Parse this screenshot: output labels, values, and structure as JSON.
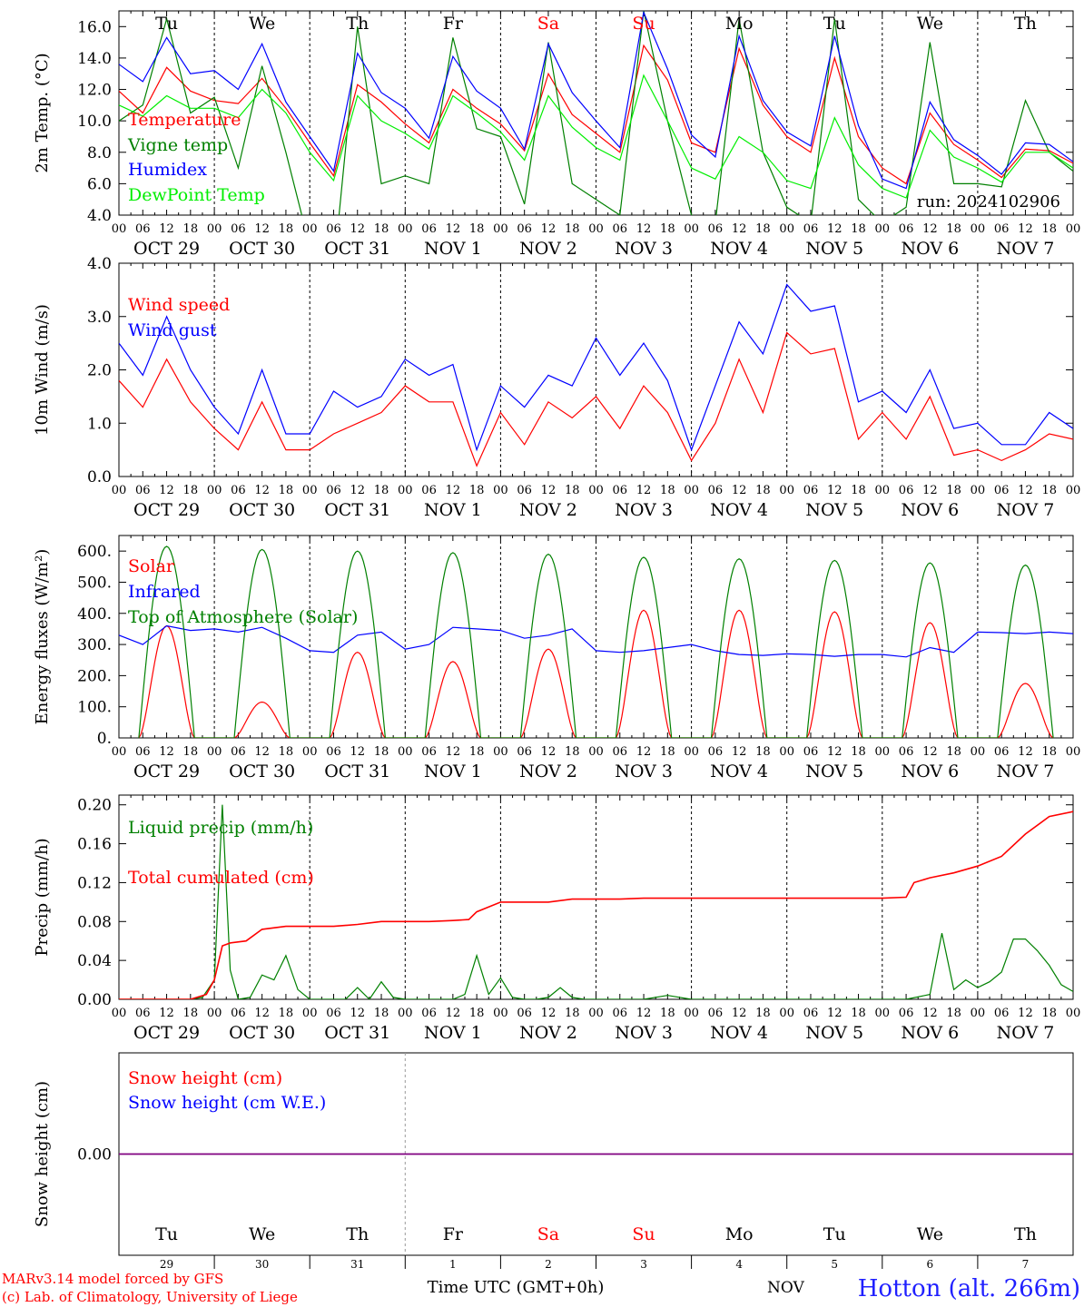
{
  "run_label": "run: 2024102906",
  "footer": {
    "model": "MARv3.14 model forced by GFS",
    "credit": "(c) Lab. of Climatology, University of Liege",
    "time_label": "Time UTC (GMT+0h)",
    "month": "NOV",
    "station": "Hotton (alt. 266m)"
  },
  "days": [
    {
      "abbr": "Tu",
      "date": "OCT 29",
      "num": "29",
      "weekend": false
    },
    {
      "abbr": "We",
      "date": "OCT 30",
      "num": "30",
      "weekend": false
    },
    {
      "abbr": "Th",
      "date": "OCT 31",
      "num": "31",
      "weekend": false
    },
    {
      "abbr": "Fr",
      "date": "NOV  1",
      "num": "1",
      "weekend": false
    },
    {
      "abbr": "Sa",
      "date": "NOV  2",
      "num": "2",
      "weekend": true
    },
    {
      "abbr": "Su",
      "date": "NOV  3",
      "num": "3",
      "weekend": true
    },
    {
      "abbr": "Mo",
      "date": "NOV  4",
      "num": "4",
      "weekend": false
    },
    {
      "abbr": "Tu",
      "date": "NOV  5",
      "num": "5",
      "weekend": false
    },
    {
      "abbr": "We",
      "date": "NOV  6",
      "num": "6",
      "weekend": false
    },
    {
      "abbr": "Th",
      "date": "NOV  7",
      "num": "7",
      "weekend": false
    }
  ],
  "hour_ticks": [
    "00",
    "06",
    "12",
    "18"
  ],
  "colors": {
    "red": "#ff0000",
    "green": "#008000",
    "blue": "#0000ff",
    "lightgreen": "#00ee00",
    "purple": "#800080",
    "grid": "#000000"
  },
  "chart_data": [
    {
      "type": "line",
      "ylabel": "2m Temp. (°C)",
      "ylim": [
        4,
        17
      ],
      "yticks": [
        "4.0",
        "6.0",
        "8.0",
        "10.0",
        "12.0",
        "14.0",
        "16.0"
      ],
      "x_hours": [
        0,
        6,
        12,
        18,
        24,
        30,
        36,
        42,
        48,
        54,
        60,
        66,
        72,
        78,
        84,
        90,
        96,
        102,
        108,
        114,
        120,
        126,
        132,
        138,
        144,
        150,
        156,
        162,
        168,
        174,
        180,
        186,
        192,
        198,
        204,
        210,
        216,
        222,
        228,
        234,
        240
      ],
      "series": [
        {
          "name": "Temperature",
          "color": "#ff0000",
          "values": [
            11.9,
            10.5,
            13.4,
            11.9,
            11.3,
            11.1,
            12.7,
            10.8,
            8.6,
            6.5,
            12.3,
            11.2,
            9.8,
            8.6,
            12.0,
            10.8,
            9.8,
            8.1,
            13.0,
            10.4,
            9.2,
            8.0,
            14.8,
            12.6,
            8.6,
            8.0,
            14.6,
            11.0,
            9.0,
            8.0,
            14.0,
            9.0,
            7.0,
            6.0,
            10.5,
            8.5,
            7.5,
            6.4,
            8.2,
            8.1,
            7.3
          ]
        },
        {
          "name": "Vigne temp",
          "color": "#008000",
          "values": [
            10.0,
            11.0,
            16.5,
            10.5,
            11.5,
            7.0,
            13.5,
            8.0,
            2.0,
            0.5,
            16.0,
            6.0,
            6.5,
            6.0,
            15.3,
            9.5,
            9.0,
            4.7,
            15.0,
            6.0,
            5.0,
            4.0,
            17.0,
            10.0,
            4.0,
            3.5,
            16.5,
            8.0,
            4.5,
            3.5,
            16.5,
            5.0,
            3.5,
            4.5,
            15.0,
            6.0,
            6.0,
            5.8,
            11.3,
            8.0,
            6.8
          ]
        },
        {
          "name": "Humidex",
          "color": "#0000ff",
          "values": [
            13.6,
            12.5,
            15.3,
            13.0,
            13.2,
            12.0,
            14.9,
            11.2,
            9.0,
            6.8,
            14.3,
            11.8,
            10.8,
            8.9,
            14.1,
            11.9,
            10.8,
            8.2,
            14.9,
            11.8,
            10.0,
            8.3,
            16.9,
            13.3,
            9.1,
            7.7,
            15.4,
            11.3,
            9.3,
            8.4,
            15.4,
            9.7,
            6.3,
            5.7,
            11.2,
            8.8,
            7.8,
            6.6,
            8.6,
            8.5,
            7.4
          ]
        },
        {
          "name": "DewPoint Temp",
          "color": "#00ee00",
          "values": [
            11.0,
            10.3,
            11.6,
            10.8,
            10.8,
            10.2,
            12.0,
            10.5,
            8.0,
            6.2,
            11.6,
            10.0,
            9.2,
            8.2,
            11.6,
            10.5,
            9.3,
            7.5,
            11.6,
            9.6,
            8.3,
            7.5,
            12.9,
            10.0,
            7.0,
            6.3,
            9.0,
            8.0,
            6.2,
            5.7,
            10.2,
            7.2,
            5.7,
            5.1,
            9.4,
            7.7,
            7.0,
            6.1,
            8.0,
            8.0,
            7.0
          ]
        }
      ]
    },
    {
      "type": "line",
      "ylabel": "10m Wind (m/s)",
      "ylim": [
        0,
        4
      ],
      "yticks": [
        "0.0",
        "1.0",
        "2.0",
        "3.0",
        "4.0"
      ],
      "x_hours": [
        0,
        6,
        12,
        18,
        24,
        30,
        36,
        42,
        48,
        54,
        60,
        66,
        72,
        78,
        84,
        90,
        96,
        102,
        108,
        114,
        120,
        126,
        132,
        138,
        144,
        150,
        156,
        162,
        168,
        174,
        180,
        186,
        192,
        198,
        204,
        210,
        216,
        222,
        228,
        234,
        240
      ],
      "series": [
        {
          "name": "Wind speed",
          "color": "#ff0000",
          "values": [
            1.8,
            1.3,
            2.2,
            1.4,
            0.9,
            0.5,
            1.4,
            0.5,
            0.5,
            0.8,
            1.0,
            1.2,
            1.7,
            1.4,
            1.4,
            0.2,
            1.2,
            0.6,
            1.4,
            1.1,
            1.5,
            0.9,
            1.7,
            1.2,
            0.3,
            1.0,
            2.2,
            1.2,
            2.7,
            2.3,
            2.4,
            0.7,
            1.2,
            0.7,
            1.5,
            0.4,
            0.5,
            0.3,
            0.5,
            0.8,
            0.7
          ]
        },
        {
          "name": "Wind gust",
          "color": "#0000ff",
          "values": [
            2.5,
            1.9,
            3.0,
            2.0,
            1.3,
            0.8,
            2.0,
            0.8,
            0.8,
            1.6,
            1.3,
            1.5,
            2.2,
            1.9,
            2.1,
            0.5,
            1.7,
            1.3,
            1.9,
            1.7,
            2.6,
            1.9,
            2.5,
            1.8,
            0.5,
            1.7,
            2.9,
            2.3,
            3.6,
            3.1,
            3.2,
            1.4,
            1.6,
            1.2,
            2.0,
            0.9,
            1.0,
            0.6,
            0.6,
            1.2,
            0.9
          ]
        }
      ]
    },
    {
      "type": "line",
      "ylabel": "Energy fluxes (W/m²)",
      "ylim": [
        0,
        650
      ],
      "yticks": [
        "0.",
        "100.",
        "200.",
        "300.",
        "400.",
        "500.",
        "600."
      ],
      "series": [
        {
          "name": "Solar",
          "color": "#ff0000",
          "peaks": [
            360,
            115,
            275,
            245,
            285,
            410,
            410,
            405,
            370,
            175
          ]
        },
        {
          "name": "Infrared",
          "color": "#0000ff",
          "x_hours": [
            0,
            6,
            12,
            18,
            24,
            30,
            36,
            42,
            48,
            54,
            60,
            66,
            72,
            78,
            84,
            90,
            96,
            102,
            108,
            114,
            120,
            126,
            132,
            138,
            144,
            150,
            156,
            162,
            168,
            174,
            180,
            186,
            192,
            198,
            204,
            210,
            216,
            222,
            228,
            234,
            240
          ],
          "values": [
            330,
            300,
            360,
            345,
            350,
            340,
            355,
            320,
            280,
            275,
            330,
            340,
            285,
            300,
            355,
            350,
            345,
            320,
            330,
            350,
            280,
            275,
            280,
            290,
            300,
            280,
            268,
            265,
            270,
            268,
            262,
            268,
            268,
            260,
            290,
            275,
            340,
            338,
            335,
            340,
            335
          ]
        },
        {
          "name": "Top of Atmosphere (Solar)",
          "color": "#008000",
          "peaks": [
            615,
            605,
            600,
            595,
            590,
            580,
            575,
            570,
            562,
            555
          ]
        }
      ]
    },
    {
      "type": "line",
      "ylabel": "Precip (mm/h)",
      "ylim": [
        0,
        0.21
      ],
      "yticks": [
        "0.00",
        "0.04",
        "0.08",
        "0.12",
        "0.16",
        "0.20"
      ],
      "series": [
        {
          "name": "Liquid precip (mm/h)",
          "color": "#008000",
          "x_hours": [
            0,
            6,
            12,
            18,
            21,
            24,
            26,
            28,
            30,
            33,
            36,
            39,
            42,
            45,
            48,
            51,
            54,
            57,
            60,
            63,
            66,
            69,
            72,
            75,
            78,
            81,
            84,
            87,
            90,
            93,
            96,
            99,
            102,
            105,
            108,
            111,
            114,
            117,
            120,
            126,
            132,
            138,
            144,
            150,
            156,
            162,
            168,
            174,
            180,
            186,
            192,
            198,
            204,
            207,
            210,
            213,
            216,
            219,
            222,
            225,
            228,
            231,
            234,
            237,
            240
          ],
          "values": [
            0,
            0,
            0,
            0,
            0.002,
            0.02,
            0.2,
            0.03,
            0,
            0.002,
            0.025,
            0.02,
            0.045,
            0.01,
            0,
            0,
            0,
            0,
            0.012,
            0,
            0.018,
            0.002,
            0,
            0,
            0,
            0,
            0,
            0.005,
            0.045,
            0.005,
            0.022,
            0.002,
            0,
            0,
            0.002,
            0.012,
            0.002,
            0,
            0,
            0,
            0,
            0.004,
            0,
            0,
            0,
            0,
            0,
            0,
            0,
            0,
            0,
            0,
            0.005,
            0.068,
            0.01,
            0.02,
            0.012,
            0.018,
            0.028,
            0.062,
            0.062,
            0.05,
            0.035,
            0.015,
            0.008
          ]
        },
        {
          "name": "Snow precip (mm/h)",
          "color": "#0000ff",
          "values": []
        },
        {
          "name": "Total cumulated (cm)",
          "color": "#ff0000",
          "x_hours": [
            0,
            18,
            22,
            24,
            26,
            28,
            32,
            36,
            42,
            48,
            54,
            60,
            66,
            72,
            78,
            84,
            88,
            90,
            96,
            102,
            108,
            114,
            120,
            126,
            132,
            138,
            144,
            150,
            156,
            162,
            168,
            174,
            180,
            186,
            192,
            198,
            200,
            204,
            210,
            216,
            222,
            228,
            234,
            240
          ],
          "values": [
            0,
            0,
            0.005,
            0.02,
            0.055,
            0.058,
            0.06,
            0.072,
            0.075,
            0.075,
            0.075,
            0.077,
            0.08,
            0.08,
            0.08,
            0.081,
            0.082,
            0.09,
            0.1,
            0.1,
            0.1,
            0.103,
            0.103,
            0.103,
            0.104,
            0.104,
            0.104,
            0.104,
            0.104,
            0.104,
            0.104,
            0.104,
            0.104,
            0.104,
            0.104,
            0.105,
            0.12,
            0.125,
            0.13,
            0.137,
            0.147,
            0.17,
            0.188,
            0.193
          ]
        }
      ]
    },
    {
      "type": "line",
      "ylabel": "Snow height (cm)",
      "ylim": [
        -1,
        1
      ],
      "yticks": [
        "0.00"
      ],
      "series": [
        {
          "name": "Snow height (cm)",
          "color": "#ff0000",
          "values": [
            0
          ]
        },
        {
          "name": "Snow height (cm W.E.)",
          "color": "#0000ff",
          "values": [
            0
          ]
        }
      ]
    }
  ]
}
